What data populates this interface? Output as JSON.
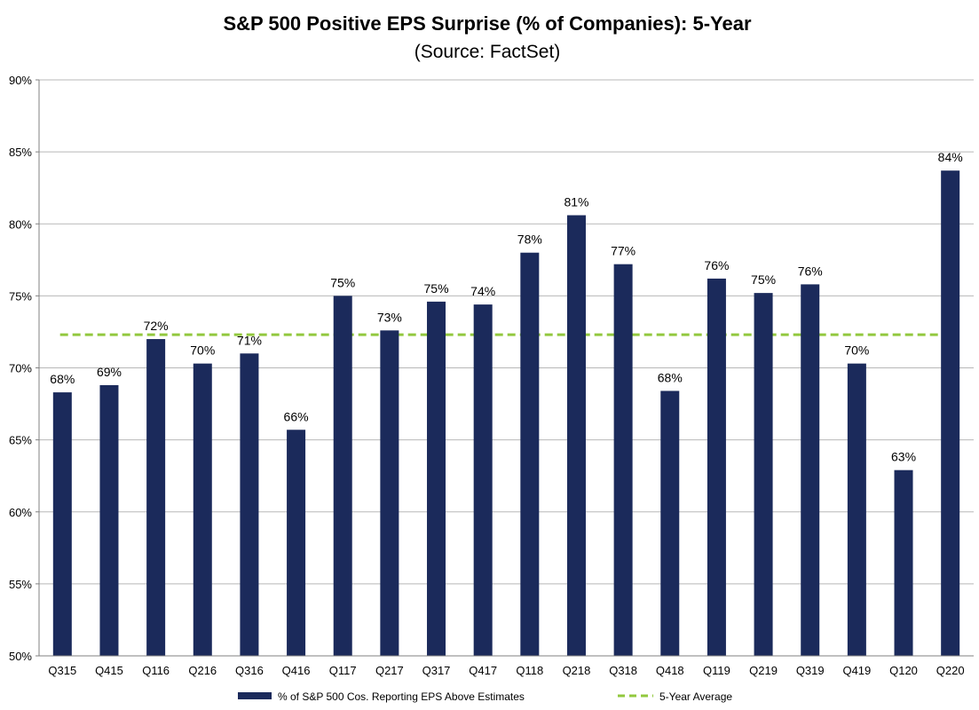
{
  "chart_data": {
    "type": "bar",
    "title": "S&P 500 Positive EPS Surprise (% of Companies): 5-Year",
    "subtitle": "(Source: FactSet)",
    "xlabel": "",
    "ylabel": "",
    "ylim": [
      50,
      90
    ],
    "yticks": [
      50,
      55,
      60,
      65,
      70,
      75,
      80,
      85,
      90
    ],
    "ytick_labels": [
      "50%",
      "55%",
      "60%",
      "65%",
      "70%",
      "75%",
      "80%",
      "85%",
      "90%"
    ],
    "grid": true,
    "categories": [
      "Q315",
      "Q415",
      "Q116",
      "Q216",
      "Q316",
      "Q416",
      "Q117",
      "Q217",
      "Q317",
      "Q417",
      "Q118",
      "Q218",
      "Q318",
      "Q418",
      "Q119",
      "Q219",
      "Q319",
      "Q419",
      "Q120",
      "Q220"
    ],
    "series": [
      {
        "name": "% of S&P 500 Cos. Reporting EPS Above Estimates",
        "type": "bar",
        "color": "#1b2a5b",
        "values": [
          68.3,
          68.8,
          72.0,
          70.3,
          71.0,
          65.7,
          75.0,
          72.6,
          74.6,
          74.4,
          78.0,
          80.6,
          77.2,
          68.4,
          76.2,
          75.2,
          75.8,
          70.3,
          62.9,
          83.7
        ],
        "labels": [
          "68%",
          "69%",
          "72%",
          "70%",
          "71%",
          "66%",
          "75%",
          "73%",
          "75%",
          "74%",
          "78%",
          "81%",
          "77%",
          "68%",
          "76%",
          "75%",
          "76%",
          "70%",
          "63%",
          "84%"
        ]
      },
      {
        "name": "5-Year Average",
        "type": "line",
        "style": "dashed",
        "color": "#92c83e",
        "value": 72.3
      }
    ],
    "legend": "bottom-center"
  }
}
